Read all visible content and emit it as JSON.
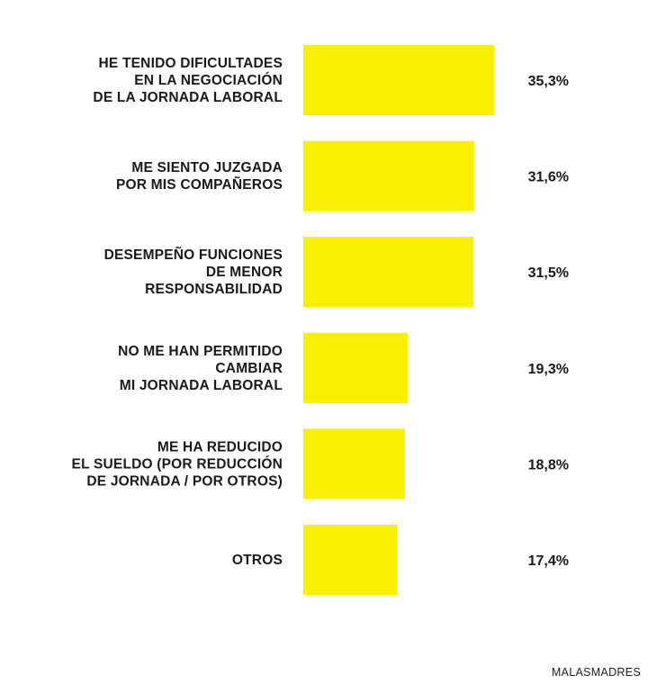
{
  "chart_data": {
    "type": "bar",
    "orientation": "horizontal",
    "categories": [
      [
        "HE TENIDO DIFICULTADES",
        "EN LA NEGOCIACIÓN",
        "DE LA JORNADA LABORAL"
      ],
      [
        "ME SIENTO JUZGADA",
        "POR MIS COMPAÑEROS"
      ],
      [
        "DESEMPEÑO FUNCIONES",
        "DE MENOR",
        "RESPONSABILIDAD"
      ],
      [
        "NO ME HAN PERMITIDO",
        "CAMBIAR",
        "MI JORNADA LABORAL"
      ],
      [
        "ME HA REDUCIDO",
        "EL SUELDO (POR REDUCCIÓN",
        "DE JORNADA / POR OTROS)"
      ],
      [
        "OTROS"
      ]
    ],
    "values": [
      35.3,
      31.6,
      31.5,
      19.3,
      18.8,
      17.4
    ],
    "value_labels": [
      "35,3%",
      "31,6%",
      "31,5%",
      "19,3%",
      "18,8%",
      "17,4%"
    ],
    "unit": "%",
    "bar_color": "#f8f000",
    "xlim": [
      0,
      35.3
    ],
    "grid": false,
    "legend": "none"
  },
  "source": "MALASMADRES"
}
